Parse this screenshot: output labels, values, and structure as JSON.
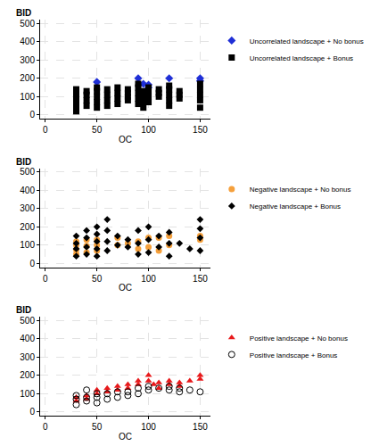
{
  "chart_data": [
    {
      "type": "scatter",
      "x_label": "OC",
      "y_label": "BID",
      "xlim": [
        -5,
        160
      ],
      "xticks": [
        0,
        50,
        100,
        150
      ],
      "ylim": [
        -20,
        520
      ],
      "yticks": [
        0,
        100,
        200,
        300,
        400,
        500
      ],
      "grid": true,
      "legend": "right",
      "series": [
        {
          "name": "Uncorrelated landscape + No bonus",
          "color": "#1f2fd6",
          "marker": "diamond",
          "x": [
            50,
            90,
            95,
            100,
            100,
            120,
            150,
            150
          ],
          "values": [
            180,
            200,
            170,
            150,
            165,
            200,
            200,
            185
          ]
        },
        {
          "name": "Uncorrelated landscape + Bonus",
          "color": "#000000",
          "marker": "square",
          "x": [
            30,
            30,
            30,
            30,
            30,
            40,
            40,
            40,
            40,
            50,
            50,
            50,
            50,
            50,
            60,
            60,
            60,
            60,
            70,
            70,
            70,
            70,
            80,
            80,
            80,
            80,
            90,
            90,
            90,
            90,
            90,
            95,
            95,
            95,
            95,
            100,
            100,
            100,
            100,
            110,
            110,
            110,
            120,
            120,
            120,
            120,
            120,
            130,
            130,
            130,
            150,
            150,
            150,
            150,
            150
          ],
          "values": [
            20,
            50,
            80,
            110,
            140,
            50,
            80,
            110,
            130,
            40,
            70,
            100,
            130,
            150,
            50,
            80,
            110,
            140,
            60,
            90,
            120,
            150,
            80,
            100,
            120,
            140,
            60,
            90,
            120,
            150,
            170,
            40,
            70,
            100,
            130,
            70,
            100,
            130,
            150,
            100,
            120,
            140,
            50,
            80,
            110,
            140,
            160,
            90,
            110,
            130,
            40,
            80,
            110,
            140,
            170
          ]
        }
      ]
    },
    {
      "type": "scatter",
      "x_label": "OC",
      "y_label": "BID",
      "xlim": [
        -5,
        160
      ],
      "xticks": [
        0,
        50,
        100,
        150
      ],
      "ylim": [
        -20,
        520
      ],
      "yticks": [
        0,
        100,
        200,
        300,
        400,
        500
      ],
      "grid": true,
      "legend": "right",
      "series": [
        {
          "name": "Negative landscape + No bonus",
          "color": "#f5a03c",
          "marker": "circle",
          "x": [
            30,
            30,
            30,
            30,
            40,
            40,
            40,
            50,
            50,
            50,
            70,
            70,
            80,
            90,
            90,
            100,
            100,
            110,
            110,
            120,
            120,
            150,
            150
          ],
          "values": [
            50,
            75,
            100,
            120,
            60,
            95,
            130,
            70,
            100,
            130,
            100,
            140,
            110,
            80,
            120,
            90,
            140,
            70,
            140,
            100,
            150,
            130,
            150
          ]
        },
        {
          "name": "Negative landscape + Bonus",
          "color": "#000000",
          "marker": "diamond",
          "x": [
            30,
            30,
            30,
            30,
            40,
            40,
            40,
            40,
            50,
            50,
            50,
            50,
            50,
            60,
            60,
            60,
            60,
            70,
            70,
            80,
            80,
            90,
            90,
            90,
            100,
            100,
            100,
            110,
            110,
            120,
            120,
            120,
            130,
            140,
            150,
            150,
            150,
            150
          ],
          "values": [
            40,
            80,
            110,
            150,
            50,
            90,
            140,
            180,
            40,
            80,
            120,
            160,
            200,
            70,
            120,
            180,
            240,
            100,
            150,
            90,
            130,
            50,
            110,
            180,
            60,
            130,
            200,
            90,
            150,
            40,
            110,
            170,
            110,
            80,
            70,
            140,
            190,
            240
          ]
        }
      ]
    },
    {
      "type": "scatter",
      "x_label": "OC",
      "y_label": "BID",
      "xlim": [
        -5,
        160
      ],
      "xticks": [
        0,
        50,
        100,
        150
      ],
      "ylim": [
        -20,
        520
      ],
      "yticks": [
        0,
        100,
        200,
        300,
        400,
        500
      ],
      "grid": true,
      "legend": "right",
      "series": [
        {
          "name": "Positive landscape + No bonus",
          "color": "#e8191b",
          "marker": "triangle-up",
          "x": [
            30,
            30,
            40,
            40,
            50,
            50,
            60,
            60,
            70,
            70,
            80,
            80,
            90,
            90,
            100,
            100,
            105,
            110,
            110,
            120,
            120,
            130,
            130,
            140,
            150,
            150
          ],
          "values": [
            80,
            60,
            70,
            90,
            100,
            120,
            110,
            130,
            120,
            140,
            130,
            150,
            150,
            170,
            170,
            200,
            150,
            160,
            130,
            150,
            170,
            140,
            160,
            170,
            200,
            180
          ]
        },
        {
          "name": "Positive landscape + Bonus",
          "color": "#000000",
          "marker": "circle-open",
          "x": [
            30,
            30,
            30,
            40,
            40,
            40,
            50,
            50,
            50,
            60,
            60,
            70,
            70,
            80,
            80,
            90,
            90,
            100,
            100,
            110,
            120,
            120,
            130,
            130,
            140,
            150
          ],
          "values": [
            40,
            70,
            90,
            60,
            120,
            80,
            50,
            80,
            100,
            70,
            100,
            80,
            110,
            90,
            110,
            100,
            130,
            120,
            140,
            130,
            120,
            140,
            110,
            130,
            120,
            110
          ]
        }
      ]
    }
  ]
}
